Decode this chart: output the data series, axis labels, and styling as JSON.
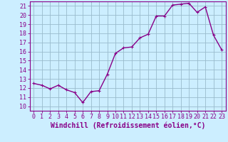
{
  "x": [
    0,
    1,
    2,
    3,
    4,
    5,
    6,
    7,
    8,
    9,
    10,
    11,
    12,
    13,
    14,
    15,
    16,
    17,
    18,
    19,
    20,
    21,
    22,
    23
  ],
  "y": [
    12.5,
    12.3,
    11.9,
    12.3,
    11.8,
    11.5,
    10.4,
    11.6,
    11.7,
    13.5,
    15.8,
    16.4,
    16.5,
    17.5,
    17.9,
    19.9,
    19.9,
    21.1,
    21.2,
    21.3,
    20.3,
    20.9,
    17.8,
    16.2
  ],
  "line_color": "#880088",
  "marker": "+",
  "marker_size": 3,
  "linewidth": 1.0,
  "bg_color": "#cceeff",
  "grid_color": "#99bbcc",
  "xlabel": "Windchill (Refroidissement éolien,°C)",
  "xlabel_fontsize": 7,
  "ylim": [
    9.5,
    21.5
  ],
  "xlim": [
    -0.5,
    23.5
  ],
  "yticks": [
    10,
    11,
    12,
    13,
    14,
    15,
    16,
    17,
    18,
    19,
    20,
    21
  ],
  "xticks": [
    0,
    1,
    2,
    3,
    4,
    5,
    6,
    7,
    8,
    9,
    10,
    11,
    12,
    13,
    14,
    15,
    16,
    17,
    18,
    19,
    20,
    21,
    22,
    23
  ],
  "tick_fontsize": 6,
  "tick_color": "#880088",
  "spine_color": "#880088"
}
